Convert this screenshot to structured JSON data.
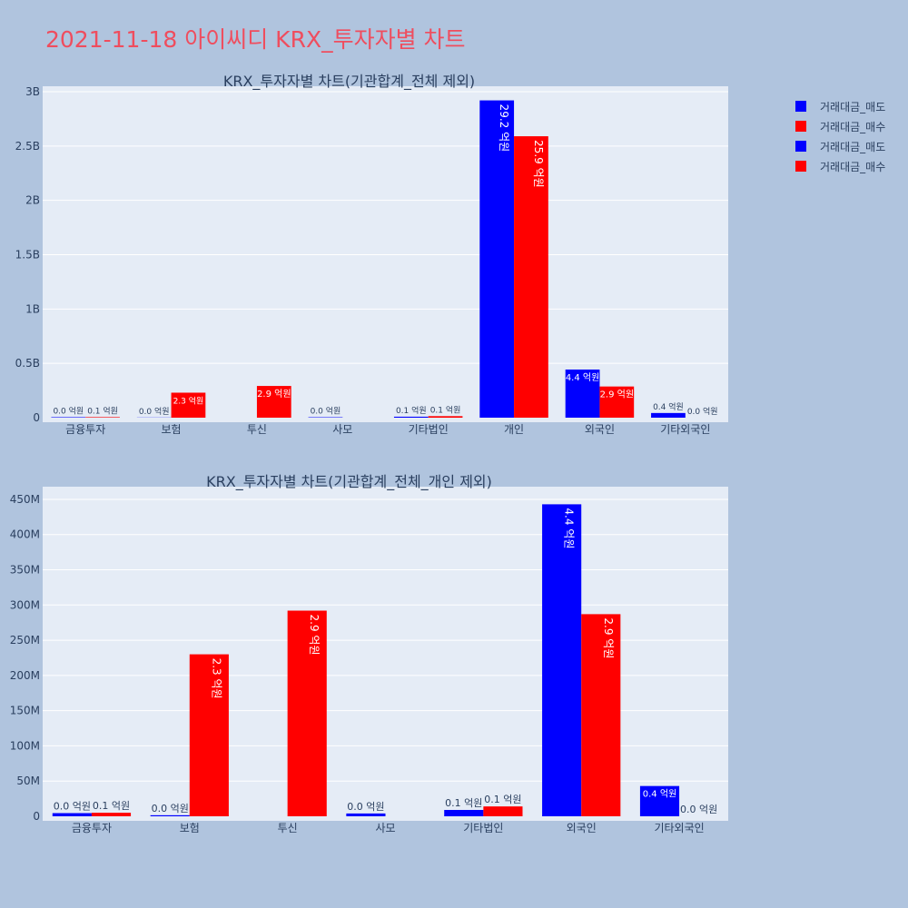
{
  "title": "2021-11-18 아이씨디 KRX_투자자별 차트",
  "colors": {
    "sell": "#0000ff",
    "buy": "#ff0000",
    "plot_bg": "#e5ecf6",
    "paper": "#b0c4de",
    "title": "#ef4d5e"
  },
  "legend": [
    {
      "label": "거래대금_매도",
      "color": "#0000ff"
    },
    {
      "label": "거래대금_매수",
      "color": "#ff0000"
    },
    {
      "label": "거래대금_매도",
      "color": "#0000ff"
    },
    {
      "label": "거래대금_매수",
      "color": "#ff0000"
    }
  ],
  "chart_data": [
    {
      "type": "bar",
      "title": "KRX_투자자별 차트(기관합계_전체 제외)",
      "categories": [
        "금융투자",
        "보험",
        "투신",
        "사모",
        "기타법인",
        "개인",
        "외국인",
        "기타외국인"
      ],
      "ylim": [
        0,
        3050000000
      ],
      "yticks": [
        0,
        500000000,
        1000000000,
        1500000000,
        2000000000,
        2500000000,
        3000000000
      ],
      "ytick_labels": [
        "0",
        "0.5B",
        "1B",
        "1.5B",
        "2B",
        "2.5B",
        "3B"
      ],
      "grid": true,
      "series": [
        {
          "name": "거래대금_매도",
          "color": "#0000ff",
          "values": [
            4500000,
            1500000,
            0,
            4000000,
            9000000,
            2920000000,
            443000000,
            43000000
          ],
          "labels": [
            "0.0 억원",
            "0.0 억원",
            "",
            "0.0 억원",
            "0.1 억원",
            "29.2 억원",
            "4.4 억원",
            "0.4 억원"
          ]
        },
        {
          "name": "거래대금_매수",
          "color": "#ff0000",
          "values": [
            5000000,
            230000000,
            292000000,
            0,
            14000000,
            2590000000,
            287000000,
            0
          ],
          "labels": [
            "0.1 억원",
            "2.3 억원",
            "2.9 억원",
            "",
            "0.1 억원",
            "25.9 억원",
            "2.9 억원",
            "0.0 억원"
          ]
        }
      ]
    },
    {
      "type": "bar",
      "title": "KRX_투자자별 차트(기관합계_전체_개인 제외)",
      "categories": [
        "금융투자",
        "보험",
        "투신",
        "사모",
        "기타법인",
        "외국인",
        "기타외국인"
      ],
      "ylim": [
        0,
        468000000
      ],
      "yticks": [
        0,
        50000000,
        100000000,
        150000000,
        200000000,
        250000000,
        300000000,
        350000000,
        400000000,
        450000000
      ],
      "ytick_labels": [
        "0",
        "50M",
        "100M",
        "150M",
        "200M",
        "250M",
        "300M",
        "350M",
        "400M",
        "450M"
      ],
      "grid": true,
      "series": [
        {
          "name": "거래대금_매도",
          "color": "#0000ff",
          "values": [
            4500000,
            1500000,
            0,
            4000000,
            9000000,
            443000000,
            43000000
          ],
          "labels": [
            "0.0 억원",
            "0.0 억원",
            "",
            "0.0 억원",
            "0.1 억원",
            "4.4 억원",
            "0.4 억원"
          ]
        },
        {
          "name": "거래대금_매수",
          "color": "#ff0000",
          "values": [
            5000000,
            230000000,
            292000000,
            0,
            14000000,
            287000000,
            0
          ],
          "labels": [
            "0.1 억원",
            "2.3 억원",
            "2.9 억원",
            "",
            "0.1 억원",
            "2.9 억원",
            "0.0 억원"
          ]
        }
      ]
    }
  ]
}
